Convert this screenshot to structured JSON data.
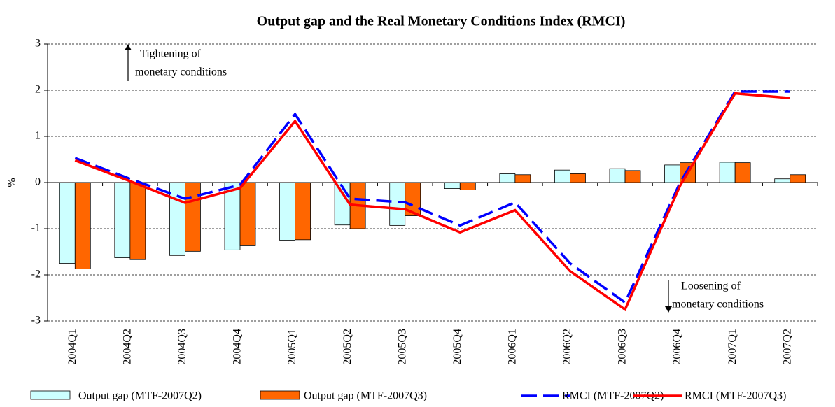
{
  "chart_data": {
    "type": "bar_line",
    "title": "Output gap and the Real Monetary Conditions Index (RMCI)",
    "y_label": "%",
    "categories": [
      "2004Q1",
      "2004Q2",
      "2004Q3",
      "2004Q4",
      "2005Q1",
      "2005Q2",
      "2005Q3",
      "2005Q4",
      "2006Q1",
      "2006Q2",
      "2006Q3",
      "2006Q4",
      "2007Q1",
      "2007Q2"
    ],
    "series": [
      {
        "name": "Output gap (MTF-2007Q2)",
        "type": "bar",
        "color": "#ccffff",
        "values": [
          -1.75,
          -1.63,
          -1.58,
          -1.46,
          -1.25,
          -0.92,
          -0.93,
          -0.13,
          0.19,
          0.27,
          0.3,
          0.38,
          0.44,
          0.08
        ]
      },
      {
        "name": "Output gap (MTF-2007Q3)",
        "type": "bar",
        "color": "#ff6600",
        "values": [
          -1.87,
          -1.67,
          -1.49,
          -1.37,
          -1.24,
          -1.0,
          -0.72,
          -0.16,
          0.17,
          0.19,
          0.26,
          0.43,
          0.43,
          0.17
        ]
      },
      {
        "name": "RMCI (MTF-2007Q2)",
        "type": "line",
        "dashed": true,
        "color": "#0000ff",
        "values": [
          0.53,
          0.08,
          -0.35,
          -0.05,
          1.48,
          -0.35,
          -0.43,
          -0.93,
          -0.43,
          -1.75,
          -2.6,
          0.0,
          1.97,
          1.97
        ]
      },
      {
        "name": "RMCI (MTF-2007Q3)",
        "type": "line",
        "color": "#ff0000",
        "values": [
          0.48,
          0.03,
          -0.44,
          -0.12,
          1.33,
          -0.48,
          -0.58,
          -1.08,
          -0.6,
          -1.92,
          -2.75,
          -0.07,
          1.93,
          1.83
        ]
      }
    ],
    "annotations": [
      "Tightening of",
      "monetary conditions",
      "Loosening of",
      "monetary  conditions"
    ],
    "ylim": [
      -3,
      3
    ],
    "yticks": [
      -3,
      -2,
      -1,
      0,
      1,
      2,
      3
    ],
    "grid": true,
    "legend": "bottom"
  }
}
